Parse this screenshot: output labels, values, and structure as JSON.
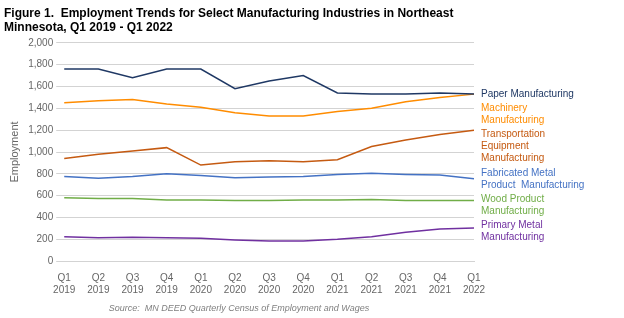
{
  "chart_data": {
    "type": "line",
    "title": "Figure 1.  Employment Trends for Select Manufacturing Industries in Northeast\nMinnesota, Q1 2019 - Q1 2022",
    "source": "Source:  MN DEED Quarterly Census of Employment and Wages",
    "ylabel": "Employment",
    "categories": [
      "Q1\n2019",
      "Q2\n2019",
      "Q3\n2019",
      "Q4\n2019",
      "Q1\n2020",
      "Q2\n2020",
      "Q3\n2020",
      "Q4\n2020",
      "Q1\n2021",
      "Q2\n2021",
      "Q3\n2021",
      "Q4\n2021",
      "Q1\n2022"
    ],
    "series": [
      {
        "name": "Paper Manufacturing",
        "color": "#1F3864",
        "values": [
          1760,
          1760,
          1680,
          1760,
          1760,
          1580,
          1650,
          1700,
          1540,
          1530,
          1530,
          1540,
          1530
        ]
      },
      {
        "name": "Machinery\nManufacturing",
        "color": "#FF8C00",
        "values": [
          1450,
          1470,
          1480,
          1440,
          1410,
          1360,
          1330,
          1330,
          1370,
          1400,
          1460,
          1500,
          1530
        ]
      },
      {
        "name": "Transportation\nEquipment\nManufacturing",
        "color": "#C55A11",
        "values": [
          940,
          980,
          1010,
          1040,
          880,
          910,
          920,
          910,
          930,
          1050,
          1110,
          1160,
          1200
        ]
      },
      {
        "name": "Fabricated Metal\nProduct  Manufacturing",
        "color": "#4472C4",
        "values": [
          775,
          760,
          775,
          800,
          785,
          765,
          770,
          775,
          795,
          805,
          795,
          790,
          755
        ]
      },
      {
        "name": "Wood Product\nManufacturing",
        "color": "#70AD47",
        "values": [
          580,
          575,
          575,
          560,
          560,
          555,
          555,
          560,
          560,
          565,
          555,
          555,
          555
        ]
      },
      {
        "name": "Primary Metal\nManufacturing",
        "color": "#7030A0",
        "values": [
          225,
          215,
          220,
          215,
          210,
          195,
          185,
          185,
          200,
          225,
          265,
          295,
          305
        ]
      }
    ],
    "ylim": [
      0,
      2000
    ],
    "yticks": [
      0,
      200,
      400,
      600,
      800,
      {
        "value": 1000,
        "label": "1,000"
      },
      {
        "value": 1200,
        "label": "1,200"
      },
      {
        "value": 1400,
        "label": "1,400"
      },
      {
        "value": 1600,
        "label": "1,600"
      },
      {
        "value": 1800,
        "label": "1,800"
      },
      {
        "value": 2000,
        "label": "2,000"
      }
    ],
    "grid": true
  }
}
